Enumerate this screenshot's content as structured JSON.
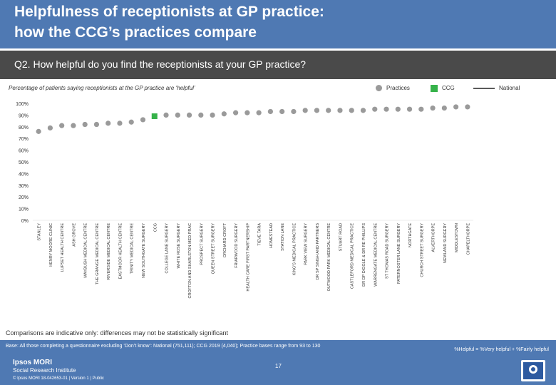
{
  "title": {
    "line1": "Helpfulness of receptionists at GP practice:",
    "line2": "how the CCG’s practices compare"
  },
  "question": "Q2. How helpful do you find the receptionists at your GP practice?",
  "subtitle": "Percentage of patients saying receptionists at the GP practice are ‘helpful’",
  "legend": {
    "practices": "Practices",
    "ccg": "CCG",
    "national": "National"
  },
  "colors": {
    "practice_dot": "#9a9a9a",
    "ccg_marker": "#36b24a",
    "national_line": "#5a5a5a",
    "header_band": "#4f79b3",
    "question_band": "#4a4a4a"
  },
  "chart_data": {
    "type": "scatter",
    "y_range": [
      0,
      100
    ],
    "y_ticks": [
      "0%",
      "10%",
      "20%",
      "30%",
      "40%",
      "50%",
      "60%",
      "70%",
      "80%",
      "90%",
      "100%"
    ],
    "grid": false,
    "legend_position": "top-right",
    "ccg_category": "CCG",
    "categories": [
      "STANLEY",
      "HENRY MOORE CLINIC",
      "LUPSET HEALTH CENTRE",
      "ASH GROVE",
      "MAYBUSH MEDICAL CENTRE",
      "THE GRANGE MEDICAL CENTRE",
      "RIVERSIDE MEDICAL CENTRE",
      "EASTMOOR HEALTH CENTRE",
      "TRINITY MEDICAL CENTRE",
      "NEW SOUTHGATE SURGERY",
      "CCG",
      "COLLEGE LANE SURGERY",
      "WHITE ROSE SURGERY",
      "CROFTON AND SHARLSTON MED PRAC",
      "PROSPECT SURGERY",
      "QUEEN STREET SURGERY",
      "ORCHARD CROFT",
      "FRIARWOOD SURGERY",
      "HEALTH CARE FIRST PARTNERSHIP",
      "TIEVE TARA",
      "HOMESTEAD",
      "STATION LANE",
      "KING'S MEDICAL PRACTICE",
      "PARK VIEW SURGERY",
      "DR SP SINGH AND PARTNERS",
      "OUTWOOD PARK MEDICAL CENTRE",
      "STUART ROAD",
      "CASTLEFORD MEDICAL PRACTICE",
      "DR DP DIGGLE & DR RE PHILLIPS",
      "WARRENGATE MEDICAL CENTRE",
      "ST THOMAS ROAD SURGERY",
      "PATERNOSTER LANE SURGERY",
      "NORTHGATE",
      "CHURCH STREET SURGERY",
      "ALVERTHORPE",
      "NEWLAND SURGERY",
      "MIDDLESTOWN",
      "CHAPELTHORPE"
    ],
    "values": [
      76,
      79,
      81,
      81,
      82,
      82,
      83,
      83,
      84,
      86,
      89,
      90,
      90,
      90,
      90,
      90,
      91,
      92,
      92,
      92,
      93,
      93,
      93,
      94,
      94,
      94,
      94,
      94,
      94,
      95,
      95,
      95,
      95,
      95,
      96,
      96,
      97,
      97
    ],
    "series": [
      {
        "name": "Practices",
        "values": [
          76,
          79,
          81,
          81,
          82,
          82,
          83,
          83,
          84,
          86,
          null,
          90,
          90,
          90,
          90,
          90,
          91,
          92,
          92,
          92,
          93,
          93,
          93,
          94,
          94,
          94,
          94,
          94,
          94,
          95,
          95,
          95,
          95,
          95,
          96,
          96,
          97,
          97
        ]
      },
      {
        "name": "CCG",
        "values": [
          null,
          null,
          null,
          null,
          null,
          null,
          null,
          null,
          null,
          null,
          89,
          null,
          null,
          null,
          null,
          null,
          null,
          null,
          null,
          null,
          null,
          null,
          null,
          null,
          null,
          null,
          null,
          null,
          null,
          null,
          null,
          null,
          null,
          null,
          null,
          null,
          null,
          null
        ]
      }
    ]
  },
  "note": "Comparisons are indicative only: differences may not be statistically significant",
  "footer": {
    "base": "Base: All those completing a questionnaire excluding ‘Don’t know’: National (751,111); CCG 2019 (4,040); Practice bases range from 93 to 130",
    "formula": "%Helpful = %Very helpful + %Fairly helpful",
    "page_number": "17",
    "logo_name": "Ipsos MORI",
    "logo_sub": "Social Research Institute",
    "copyright": "© Ipsos MORI    18-042653-01 | Version 1 | Public"
  }
}
